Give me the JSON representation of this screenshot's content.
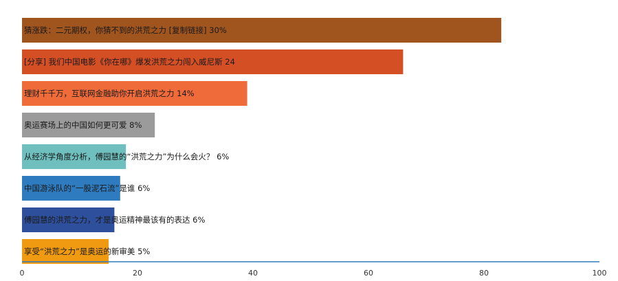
{
  "chart_data": {
    "type": "bar",
    "orientation": "horizontal",
    "title": "",
    "xlabel": "",
    "ylabel": "",
    "xlim": [
      0,
      100
    ],
    "ticks": [
      0,
      20,
      40,
      60,
      80,
      100
    ],
    "grid": false,
    "axis_color": "#2f7bbf",
    "bars": [
      {
        "label": "猜涨跌：二元期权，你猜不到的洪荒之力 [复制链接] 30%",
        "value": 83,
        "color": "#a0541e"
      },
      {
        "label": "[分享] 我们中国电影《你在哪》爆发洪荒之力闯入威尼斯 24",
        "value": 66,
        "color": "#d54f25"
      },
      {
        "label": "理财千千万，互联网金融助你开启洪荒之力 14%",
        "value": 39,
        "color": "#f06b3a"
      },
      {
        "label": "奥运赛场上的中国如何更可爱 8%",
        "value": 23,
        "color": "#9b9b9b"
      },
      {
        "label": "从经济学角度分析，傅园慧的“洪荒之力”为什么会火？ 6%",
        "value": 18,
        "color": "#6fbfbf"
      },
      {
        "label": "中国游泳队的“一股泥石流”是谁 6%",
        "value": 17,
        "color": "#2f7bbf"
      },
      {
        "label": "傅园慧的洪荒之力，才是奥运精神最该有的表达 6%",
        "value": 16,
        "color": "#2e4f9c"
      },
      {
        "label": "享受“洪荒之力”是奥运的新审美 5%",
        "value": 15,
        "color": "#ef9a10"
      }
    ]
  }
}
